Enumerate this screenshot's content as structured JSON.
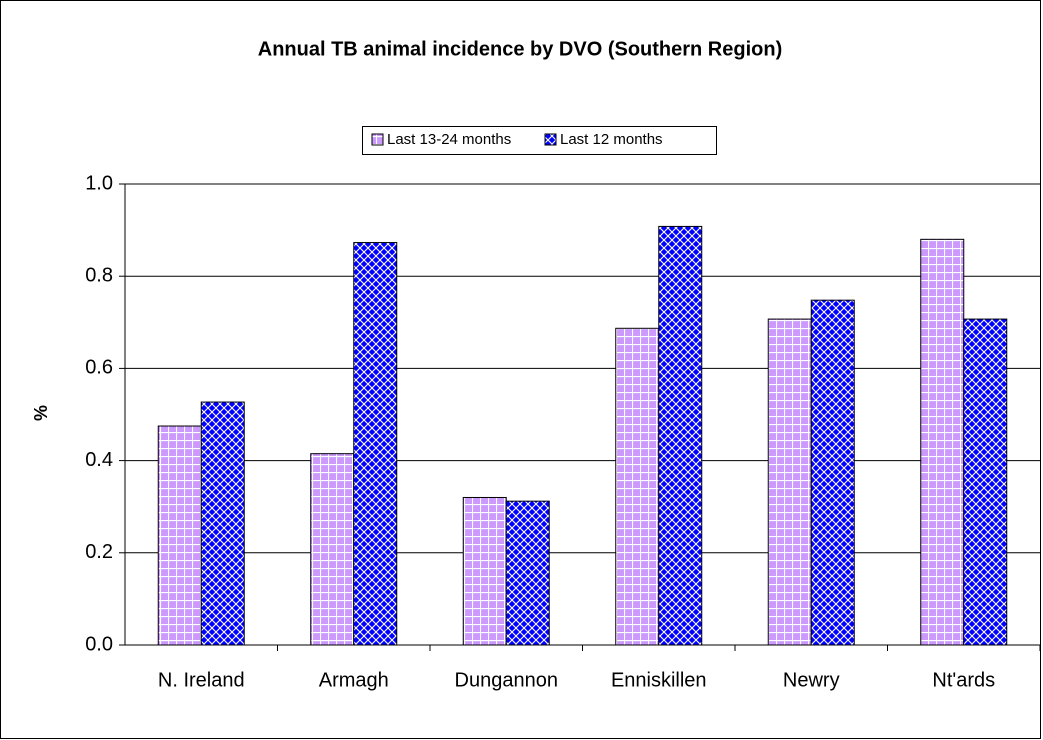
{
  "chart_data": {
    "type": "bar",
    "title": "Annual TB animal incidence by DVO (Southern Region)",
    "y_label": "%",
    "categories": [
      "N. Ireland",
      "Armagh",
      "Dungannon",
      "Enniskillen",
      "Newry",
      "Nt'ards"
    ],
    "series": [
      {
        "name": "Last 13-24 months",
        "color": "#cc99ff",
        "values": [
          0.475,
          0.415,
          0.32,
          0.687,
          0.707,
          0.88
        ]
      },
      {
        "name": "Last 12 months",
        "color": "#0000ff",
        "values": [
          0.527,
          0.873,
          0.312,
          0.908,
          0.748,
          0.707
        ]
      }
    ],
    "ylim": [
      0,
      1
    ],
    "yticks": [
      {
        "value": 0,
        "label": "0.0"
      },
      0.2,
      0.4,
      0.6,
      0.8,
      {
        "value": 1,
        "label": "1.0"
      }
    ],
    "grid": true
  }
}
